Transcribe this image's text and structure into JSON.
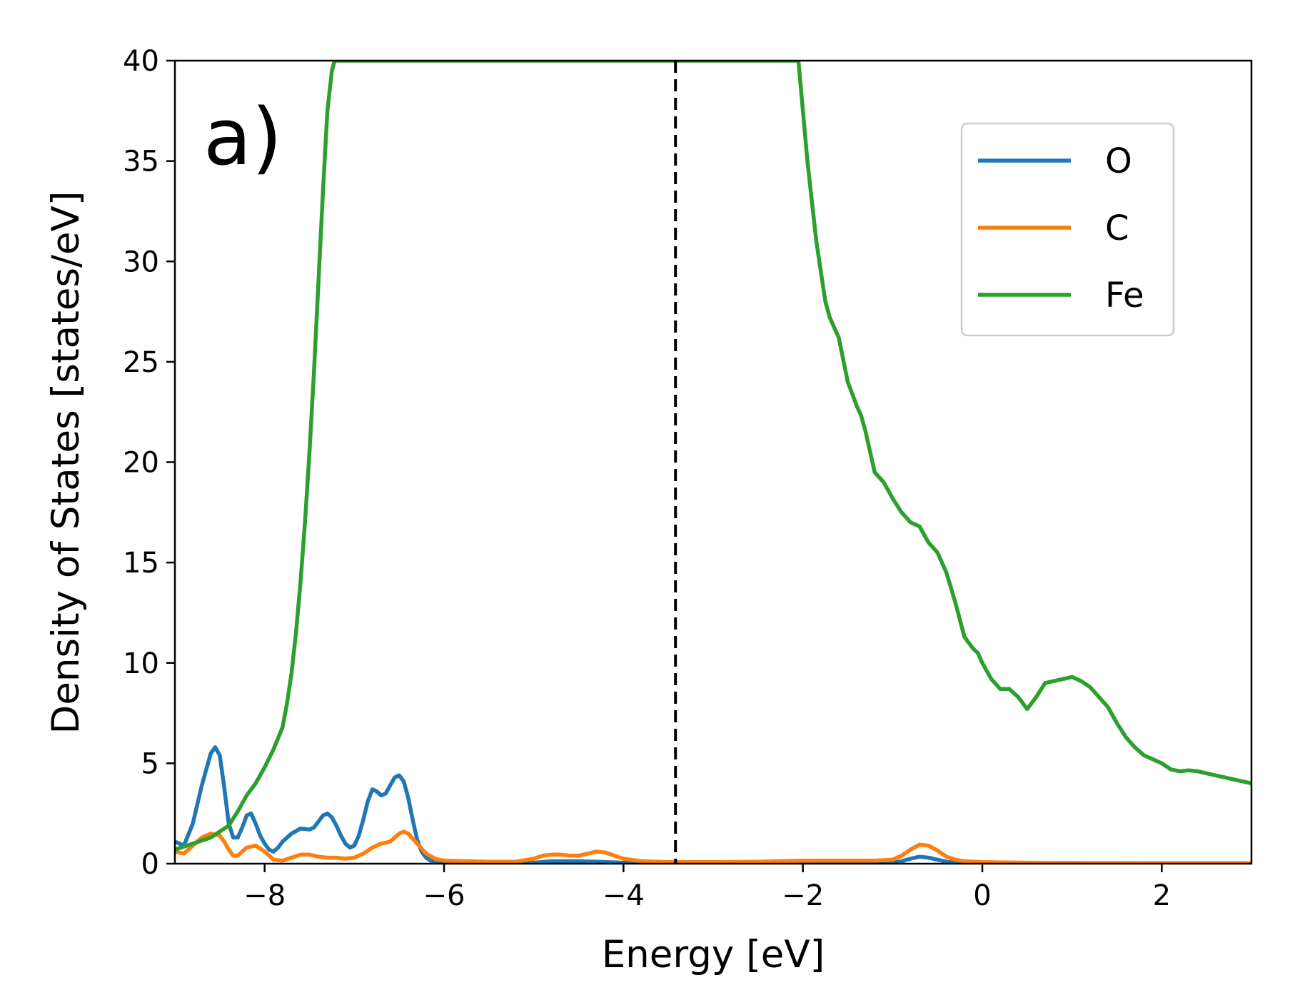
{
  "chart_data": {
    "type": "line",
    "panel_label": "a)",
    "xlabel": "Energy [eV]",
    "ylabel": "Density of States [states/eV]",
    "xlim": [
      -9,
      3
    ],
    "ylim": [
      0,
      40
    ],
    "xticks": [
      -8,
      -6,
      -4,
      -2,
      0,
      2
    ],
    "xtick_labels": [
      "−8",
      "−6",
      "−4",
      "−2",
      "0",
      "2"
    ],
    "yticks": [
      0,
      5,
      10,
      15,
      20,
      25,
      30,
      35,
      40
    ],
    "ytick_labels": [
      "0",
      "5",
      "10",
      "15",
      "20",
      "25",
      "30",
      "35",
      "40"
    ],
    "fermi_level": -3.42,
    "legend_position": "upper right",
    "grid": false,
    "series": [
      {
        "name": "O",
        "color": "#1f77b4",
        "x": [
          -9.0,
          -8.9,
          -8.8,
          -8.7,
          -8.6,
          -8.55,
          -8.5,
          -8.45,
          -8.4,
          -8.35,
          -8.3,
          -8.25,
          -8.2,
          -8.15,
          -8.1,
          -8.05,
          -8.0,
          -7.95,
          -7.9,
          -7.85,
          -7.8,
          -7.7,
          -7.6,
          -7.5,
          -7.45,
          -7.4,
          -7.35,
          -7.3,
          -7.25,
          -7.2,
          -7.15,
          -7.1,
          -7.05,
          -7.0,
          -6.95,
          -6.9,
          -6.85,
          -6.8,
          -6.75,
          -6.7,
          -6.65,
          -6.6,
          -6.55,
          -6.5,
          -6.45,
          -6.4,
          -6.35,
          -6.3,
          -6.25,
          -6.2,
          -6.15,
          -6.1,
          -6.0,
          -5.5,
          -5.0,
          -4.8,
          -4.5,
          -4.3,
          -4.0,
          -3.5,
          -3.0,
          -2.5,
          -2.0,
          -1.5,
          -1.0,
          -0.9,
          -0.8,
          -0.7,
          -0.6,
          -0.5,
          -0.4,
          -0.3,
          -0.2,
          0.0,
          0.5,
          1.0,
          2.0,
          3.0
        ],
        "y": [
          1.1,
          0.9,
          2.0,
          3.9,
          5.5,
          5.8,
          5.4,
          3.8,
          2.0,
          1.3,
          1.3,
          1.8,
          2.4,
          2.5,
          2.0,
          1.4,
          1.0,
          0.7,
          0.6,
          0.8,
          1.1,
          1.5,
          1.75,
          1.7,
          1.8,
          2.1,
          2.4,
          2.5,
          2.3,
          1.9,
          1.4,
          1.0,
          0.8,
          0.9,
          1.4,
          2.2,
          3.1,
          3.7,
          3.6,
          3.4,
          3.5,
          3.9,
          4.3,
          4.4,
          4.1,
          3.3,
          2.2,
          1.2,
          0.6,
          0.3,
          0.15,
          0.1,
          0.08,
          0.05,
          0.05,
          0.12,
          0.12,
          0.1,
          0.05,
          0.02,
          0.02,
          0.02,
          0.02,
          0.02,
          0.05,
          0.12,
          0.25,
          0.35,
          0.3,
          0.2,
          0.1,
          0.05,
          0.03,
          0.02,
          0.02,
          0.01,
          0.01,
          0.01
        ]
      },
      {
        "name": "C",
        "color": "#ff7f0e",
        "x": [
          -9.0,
          -8.9,
          -8.8,
          -8.7,
          -8.6,
          -8.5,
          -8.45,
          -8.4,
          -8.35,
          -8.3,
          -8.2,
          -8.1,
          -8.0,
          -7.9,
          -7.8,
          -7.7,
          -7.6,
          -7.5,
          -7.4,
          -7.3,
          -7.2,
          -7.1,
          -7.0,
          -6.9,
          -6.8,
          -6.7,
          -6.6,
          -6.55,
          -6.5,
          -6.45,
          -6.4,
          -6.3,
          -6.2,
          -6.1,
          -6.0,
          -5.5,
          -5.2,
          -5.0,
          -4.9,
          -4.8,
          -4.7,
          -4.6,
          -4.5,
          -4.4,
          -4.3,
          -4.2,
          -4.1,
          -4.0,
          -3.8,
          -3.5,
          -3.0,
          -2.5,
          -2.0,
          -1.5,
          -1.2,
          -1.0,
          -0.9,
          -0.8,
          -0.7,
          -0.6,
          -0.5,
          -0.4,
          -0.3,
          -0.2,
          0.0,
          0.5,
          1.0,
          2.0,
          3.0
        ],
        "y": [
          0.6,
          0.5,
          0.9,
          1.3,
          1.5,
          1.4,
          1.1,
          0.7,
          0.4,
          0.4,
          0.8,
          0.9,
          0.6,
          0.2,
          0.15,
          0.3,
          0.45,
          0.45,
          0.35,
          0.3,
          0.3,
          0.25,
          0.3,
          0.5,
          0.8,
          1.0,
          1.1,
          1.3,
          1.5,
          1.6,
          1.5,
          1.0,
          0.5,
          0.25,
          0.15,
          0.1,
          0.1,
          0.25,
          0.4,
          0.45,
          0.45,
          0.4,
          0.4,
          0.5,
          0.6,
          0.55,
          0.4,
          0.25,
          0.12,
          0.08,
          0.08,
          0.1,
          0.15,
          0.15,
          0.15,
          0.2,
          0.4,
          0.7,
          0.95,
          0.9,
          0.65,
          0.35,
          0.2,
          0.12,
          0.08,
          0.05,
          0.04,
          0.03,
          0.03
        ]
      },
      {
        "name": "Fe",
        "color": "#2ca02c",
        "x": [
          -9.0,
          -8.8,
          -8.6,
          -8.4,
          -8.3,
          -8.2,
          -8.1,
          -8.0,
          -7.9,
          -7.8,
          -7.75,
          -7.7,
          -7.65,
          -7.6,
          -7.55,
          -7.5,
          -7.45,
          -7.4,
          -7.35,
          -7.3,
          -7.25,
          -7.22,
          -2.05,
          -2.0,
          -1.95,
          -1.9,
          -1.85,
          -1.8,
          -1.75,
          -1.7,
          -1.6,
          -1.5,
          -1.4,
          -1.35,
          -1.3,
          -1.2,
          -1.1,
          -1.0,
          -0.9,
          -0.8,
          -0.7,
          -0.6,
          -0.5,
          -0.4,
          -0.3,
          -0.2,
          -0.1,
          -0.05,
          0.0,
          0.1,
          0.2,
          0.3,
          0.4,
          0.5,
          0.6,
          0.7,
          0.8,
          0.9,
          1.0,
          1.1,
          1.2,
          1.3,
          1.4,
          1.5,
          1.6,
          1.7,
          1.8,
          1.9,
          2.0,
          2.1,
          2.2,
          2.3,
          2.4,
          2.5,
          2.6,
          2.7,
          2.8,
          2.9,
          3.0
        ],
        "y": [
          0.7,
          1.0,
          1.3,
          1.9,
          2.6,
          3.4,
          4.0,
          4.8,
          5.7,
          6.8,
          8.0,
          9.5,
          11.5,
          14.0,
          17.0,
          20.5,
          24.5,
          29.0,
          33.5,
          37.5,
          39.5,
          40.0,
          40.0,
          37.5,
          35.0,
          33.0,
          31.0,
          29.5,
          28.0,
          27.2,
          26.2,
          24.0,
          22.8,
          22.3,
          21.5,
          19.5,
          19.0,
          18.2,
          17.5,
          17.0,
          16.8,
          16.0,
          15.5,
          14.5,
          13.0,
          11.3,
          10.7,
          10.5,
          10.0,
          9.2,
          8.7,
          8.7,
          8.3,
          7.7,
          8.3,
          9.0,
          9.1,
          9.2,
          9.3,
          9.1,
          8.8,
          8.3,
          7.8,
          7.0,
          6.3,
          5.8,
          5.4,
          5.2,
          5.0,
          4.7,
          4.6,
          4.65,
          4.6,
          4.5,
          4.4,
          4.3,
          4.2,
          4.1,
          4.0
        ]
      }
    ]
  }
}
